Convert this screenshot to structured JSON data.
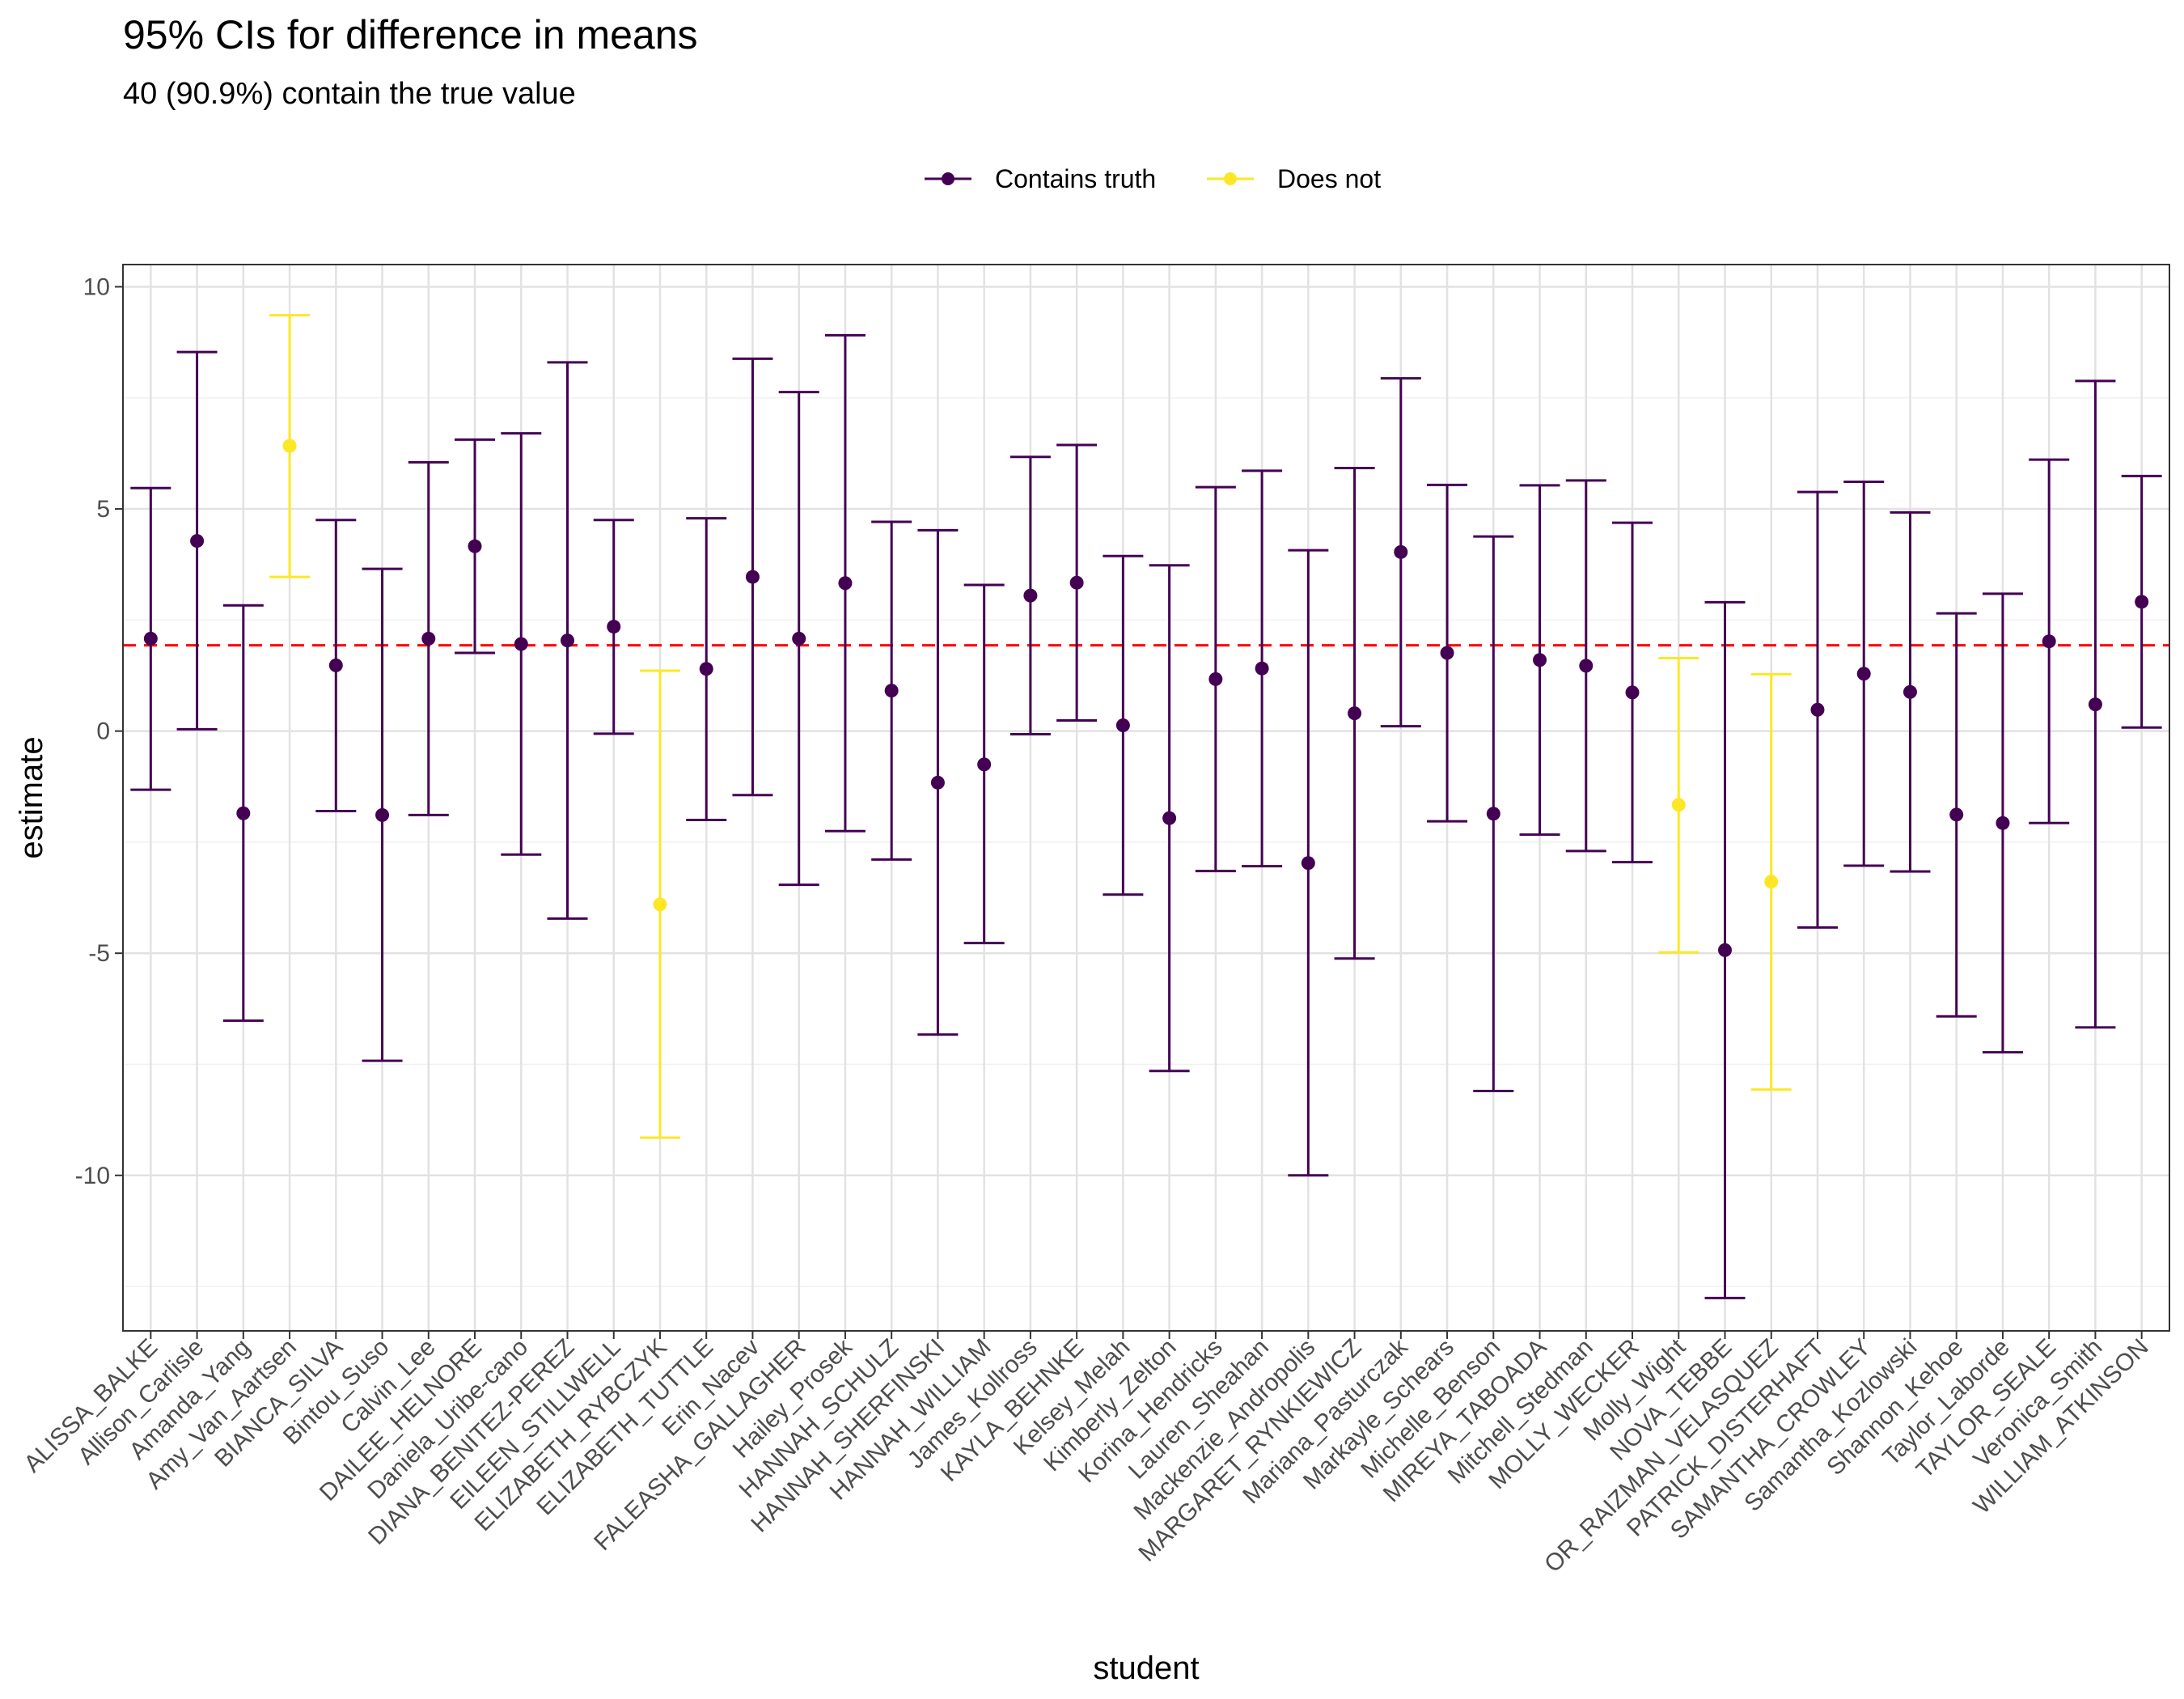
{
  "chart_data": {
    "type": "errorbar",
    "title": "95% CIs for difference in means",
    "subtitle": "40 (90.9%) contain the true value",
    "xlabel": "student",
    "ylabel": "estimate",
    "ylim": [
      -13.5,
      10.5
    ],
    "y_ticks": [
      10,
      5,
      0,
      -5,
      -10
    ],
    "reference_line": {
      "y": 1.93,
      "color": "#ff0000",
      "style": "dashed"
    },
    "legend": {
      "placement": "top",
      "entries": [
        {
          "label": "Contains truth",
          "color": "#440154"
        },
        {
          "label": "Does not",
          "color": "#fde725"
        }
      ]
    },
    "grid": true,
    "points": [
      {
        "student": "ALISSA_BALKE",
        "estimate": 2.08,
        "lower": -1.32,
        "upper": 5.47,
        "contains": true
      },
      {
        "student": "Allison_Carlisle",
        "estimate": 4.28,
        "lower": 0.04,
        "upper": 8.53,
        "contains": true
      },
      {
        "student": "Amanda_Yang",
        "estimate": -1.85,
        "lower": -6.52,
        "upper": 2.83,
        "contains": true
      },
      {
        "student": "Amy_Van_Aartsen",
        "estimate": 6.42,
        "lower": 3.47,
        "upper": 9.36,
        "contains": false
      },
      {
        "student": "BIANCA_SILVA",
        "estimate": 1.48,
        "lower": -1.8,
        "upper": 4.75,
        "contains": true
      },
      {
        "student": "Bintou_Suso",
        "estimate": -1.89,
        "lower": -7.42,
        "upper": 3.65,
        "contains": true
      },
      {
        "student": "Calvin_Lee",
        "estimate": 2.08,
        "lower": -1.89,
        "upper": 6.05,
        "contains": true
      },
      {
        "student": "DAILEE_HELNORE",
        "estimate": 4.16,
        "lower": 1.76,
        "upper": 6.56,
        "contains": true
      },
      {
        "student": "Daniela_Uribe-cano",
        "estimate": 1.96,
        "lower": -2.78,
        "upper": 6.7,
        "contains": true
      },
      {
        "student": "DIANA_BENITEZ-PEREZ",
        "estimate": 2.04,
        "lower": -4.22,
        "upper": 8.3,
        "contains": true
      },
      {
        "student": "EILEEN_STILLWELL",
        "estimate": 2.35,
        "lower": -0.06,
        "upper": 4.75,
        "contains": true
      },
      {
        "student": "ELIZABETH_RYBCZYK",
        "estimate": -3.9,
        "lower": -9.15,
        "upper": 1.36,
        "contains": false
      },
      {
        "student": "ELIZABETH_TUTTLE",
        "estimate": 1.4,
        "lower": -2.0,
        "upper": 4.79,
        "contains": true
      },
      {
        "student": "Erin_Nacev",
        "estimate": 3.47,
        "lower": -1.44,
        "upper": 8.38,
        "contains": true
      },
      {
        "student": "FALEASHA_GALLAGHER",
        "estimate": 2.08,
        "lower": -3.46,
        "upper": 7.63,
        "contains": true
      },
      {
        "student": "Hailey_Prosek",
        "estimate": 3.33,
        "lower": -2.25,
        "upper": 8.91,
        "contains": true
      },
      {
        "student": "HANNAH_SCHULZ",
        "estimate": 0.91,
        "lower": -2.89,
        "upper": 4.71,
        "contains": true
      },
      {
        "student": "HANNAH_SHERFINSKI",
        "estimate": -1.16,
        "lower": -6.83,
        "upper": 4.52,
        "contains": true
      },
      {
        "student": "HANNAH_WILLIAM",
        "estimate": -0.75,
        "lower": -4.77,
        "upper": 3.29,
        "contains": true
      },
      {
        "student": "James_Kollross",
        "estimate": 3.05,
        "lower": -0.07,
        "upper": 6.17,
        "contains": true
      },
      {
        "student": "KAYLA_BEHNKE",
        "estimate": 3.34,
        "lower": 0.24,
        "upper": 6.44,
        "contains": true
      },
      {
        "student": "Kelsey_Melah",
        "estimate": 0.13,
        "lower": -3.68,
        "upper": 3.94,
        "contains": true
      },
      {
        "student": "Kimberly_Zelton",
        "estimate": -1.96,
        "lower": -7.65,
        "upper": 3.73,
        "contains": true
      },
      {
        "student": "Korina_Hendricks",
        "estimate": 1.17,
        "lower": -3.15,
        "upper": 5.49,
        "contains": true
      },
      {
        "student": "Lauren_Sheahan",
        "estimate": 1.41,
        "lower": -3.04,
        "upper": 5.86,
        "contains": true
      },
      {
        "student": "Mackenzie_Andropolis",
        "estimate": -2.97,
        "lower": -10.0,
        "upper": 4.07,
        "contains": true
      },
      {
        "student": "MARGARET_RYNKIEWICZ",
        "estimate": 0.4,
        "lower": -5.12,
        "upper": 5.92,
        "contains": true
      },
      {
        "student": "Mariana_Pasturczak",
        "estimate": 4.03,
        "lower": 0.11,
        "upper": 7.94,
        "contains": true
      },
      {
        "student": "Markayle_Schears",
        "estimate": 1.76,
        "lower": -2.03,
        "upper": 5.54,
        "contains": true
      },
      {
        "student": "Michelle_Benson",
        "estimate": -1.86,
        "lower": -8.1,
        "upper": 4.38,
        "contains": true
      },
      {
        "student": "MIREYA_TABOADA",
        "estimate": 1.6,
        "lower": -2.33,
        "upper": 5.53,
        "contains": true
      },
      {
        "student": "Mitchell_Stedman",
        "estimate": 1.47,
        "lower": -2.7,
        "upper": 5.64,
        "contains": true
      },
      {
        "student": "MOLLY_WECKER",
        "estimate": 0.87,
        "lower": -2.95,
        "upper": 4.69,
        "contains": true
      },
      {
        "student": "Molly_Wight",
        "estimate": -1.66,
        "lower": -4.98,
        "upper": 1.64,
        "contains": false
      },
      {
        "student": "NOVA_TEBBE",
        "estimate": -4.93,
        "lower": -12.76,
        "upper": 2.9,
        "contains": true
      },
      {
        "student": "OR_RAIZMAN_VELASQUEZ",
        "estimate": -3.39,
        "lower": -8.07,
        "upper": 1.28,
        "contains": false
      },
      {
        "student": "PATRICK_DISTERHAFT",
        "estimate": 0.48,
        "lower": -4.42,
        "upper": 5.38,
        "contains": true
      },
      {
        "student": "SAMANTHA_CROWLEY",
        "estimate": 1.29,
        "lower": -3.03,
        "upper": 5.61,
        "contains": true
      },
      {
        "student": "Samantha_Kozlowski",
        "estimate": 0.88,
        "lower": -3.16,
        "upper": 4.92,
        "contains": true
      },
      {
        "student": "Shannon_Kehoe",
        "estimate": -1.88,
        "lower": -6.42,
        "upper": 2.65,
        "contains": true
      },
      {
        "student": "Taylor_Laborde",
        "estimate": -2.07,
        "lower": -7.23,
        "upper": 3.09,
        "contains": true
      },
      {
        "student": "TAYLOR_SEALE",
        "estimate": 2.02,
        "lower": -2.07,
        "upper": 6.11,
        "contains": true
      },
      {
        "student": "Veronica_Smith",
        "estimate": 0.6,
        "lower": -6.67,
        "upper": 7.88,
        "contains": true
      },
      {
        "student": "WILLIAM_ATKINSON",
        "estimate": 2.91,
        "lower": 0.08,
        "upper": 5.74,
        "contains": true
      }
    ]
  }
}
